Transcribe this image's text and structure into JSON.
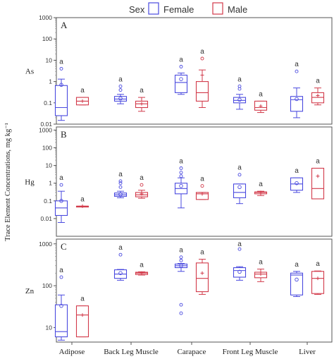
{
  "legend": {
    "title": "Sex",
    "entries": [
      {
        "label": "Female",
        "color": "#4a4adf"
      },
      {
        "label": "Male",
        "color": "#d23a4a"
      }
    ]
  },
  "y_axis_label": "Trace Element Concentrations, mg kg⁻¹",
  "chart_data": {
    "type": "box",
    "categories": [
      "Adipose",
      "Back Leg Muscle",
      "Carapace",
      "Front Leg Muscle",
      "Liver"
    ],
    "series_names": [
      "Female",
      "Male"
    ],
    "colors": {
      "Female": "#4a4adf",
      "Male": "#d23a4a"
    },
    "y_scale": "log",
    "grid": false,
    "legend_position": "top",
    "panels": [
      {
        "letter": "A",
        "element": "As",
        "ylim": [
          0.01,
          1000
        ],
        "ticks": [
          "0.01",
          "0.1",
          "1",
          "10",
          "100",
          "1000"
        ],
        "tick_values": [
          0.01,
          0.1,
          1,
          10,
          100,
          1000
        ],
        "boxes": [
          {
            "category": "Adipose",
            "sex": "Female",
            "min": 0.015,
            "q1": 0.025,
            "median": 0.06,
            "q3": 0.65,
            "max": 1.3,
            "mean": 0.7,
            "outliers": [
              4
            ],
            "letter": "a"
          },
          {
            "category": "Adipose",
            "sex": "Male",
            "min": 0.08,
            "q1": 0.08,
            "median": 0.12,
            "q3": 0.18,
            "max": 0.18,
            "mean": 0.12,
            "outliers": [],
            "letter": "a"
          },
          {
            "category": "Back Leg Muscle",
            "sex": "Female",
            "min": 0.09,
            "q1": 0.12,
            "median": 0.15,
            "q3": 0.2,
            "max": 0.25,
            "mean": 0.16,
            "outliers": [
              0.4,
              0.6
            ],
            "letter": "a"
          },
          {
            "category": "Back Leg Muscle",
            "sex": "Male",
            "min": 0.04,
            "q1": 0.06,
            "median": 0.09,
            "q3": 0.12,
            "max": 0.18,
            "mean": 0.09,
            "outliers": [],
            "letter": "a"
          },
          {
            "category": "Carapace",
            "sex": "Female",
            "min": 0.25,
            "q1": 0.3,
            "median": 0.9,
            "q3": 2,
            "max": 2.5,
            "mean": 1.3,
            "outliers": [
              5
            ],
            "letter": "a"
          },
          {
            "category": "Carapace",
            "sex": "Male",
            "min": 0.06,
            "q1": 0.12,
            "median": 0.3,
            "q3": 1.0,
            "max": 3.5,
            "mean": 2.0,
            "outliers": [
              12
            ],
            "letter": "a"
          },
          {
            "category": "Front Leg Muscle",
            "sex": "Female",
            "min": 0.05,
            "q1": 0.1,
            "median": 0.13,
            "q3": 0.18,
            "max": 0.25,
            "mean": 0.14,
            "outliers": [
              0.45,
              0.6
            ],
            "letter": "a"
          },
          {
            "category": "Front Leg Muscle",
            "sex": "Male",
            "min": 0.035,
            "q1": 0.045,
            "median": 0.06,
            "q3": 0.12,
            "max": 0.12,
            "mean": 0.07,
            "outliers": [],
            "letter": "a"
          },
          {
            "category": "Liver",
            "sex": "Female",
            "min": 0.02,
            "q1": 0.04,
            "median": 0.14,
            "q3": 0.2,
            "max": 0.5,
            "mean": 0.15,
            "outliers": [
              3
            ],
            "letter": "a"
          },
          {
            "category": "Liver",
            "sex": "Male",
            "min": 0.08,
            "q1": 0.1,
            "median": 0.18,
            "q3": 0.3,
            "max": 0.5,
            "mean": 0.22,
            "outliers": [],
            "letter": "a"
          }
        ]
      },
      {
        "letter": "B",
        "element": "Hg",
        "ylim": [
          0.001,
          1500
        ],
        "ticks": [
          "0.01",
          "0.1",
          "1",
          "10",
          "100",
          "1000"
        ],
        "tick_values": [
          0.01,
          0.1,
          1,
          10,
          100,
          1000
        ],
        "boxes": [
          {
            "category": "Adipose",
            "sex": "Female",
            "min": 0.006,
            "q1": 0.015,
            "median": 0.04,
            "q3": 0.1,
            "max": 0.35,
            "mean": 0.1,
            "outliers": [
              0.8
            ],
            "letter": "a"
          },
          {
            "category": "Adipose",
            "sex": "Male",
            "min": 0.045,
            "q1": 0.045,
            "median": 0.05,
            "q3": 0.05,
            "max": 0.05,
            "mean": 0.05,
            "outliers": [],
            "letter": "a"
          },
          {
            "category": "Back Leg Muscle",
            "sex": "Female",
            "min": 0.15,
            "q1": 0.18,
            "median": 0.22,
            "q3": 0.28,
            "max": 0.35,
            "mean": 0.23,
            "outliers": [
              0.6,
              1.0,
              1.3
            ],
            "letter": "a"
          },
          {
            "category": "Back Leg Muscle",
            "sex": "Male",
            "min": 0.14,
            "q1": 0.17,
            "median": 0.22,
            "q3": 0.3,
            "max": 0.4,
            "mean": 0.25,
            "outliers": [
              0.8
            ],
            "letter": "a"
          },
          {
            "category": "Carapace",
            "sex": "Female",
            "min": 0.04,
            "q1": 0.25,
            "median": 0.5,
            "q3": 1.0,
            "max": 2,
            "mean": 0.7,
            "outliers": [
              2.5,
              4,
              7
            ],
            "letter": "a"
          },
          {
            "category": "Carapace",
            "sex": "Male",
            "min": 0.12,
            "q1": 0.12,
            "median": 0.25,
            "q3": 0.3,
            "max": 0.3,
            "mean": 0.25,
            "outliers": [
              0.7
            ],
            "letter": "a"
          },
          {
            "category": "Front Leg Muscle",
            "sex": "Female",
            "min": 0.07,
            "q1": 0.15,
            "median": 0.3,
            "q3": 0.9,
            "max": 0.9,
            "mean": 0.6,
            "outliers": [
              3
            ],
            "letter": "a"
          },
          {
            "category": "Front Leg Muscle",
            "sex": "Male",
            "min": 0.2,
            "q1": 0.25,
            "median": 0.3,
            "q3": 0.32,
            "max": 0.35,
            "mean": 0.3,
            "outliers": [],
            "letter": "a"
          },
          {
            "category": "Liver",
            "sex": "Female",
            "min": 0.3,
            "q1": 0.4,
            "median": 0.9,
            "q3": 2,
            "max": 2,
            "mean": 1.0,
            "outliers": [],
            "letter": "a"
          },
          {
            "category": "Liver",
            "sex": "Male",
            "min": 0.13,
            "q1": 0.13,
            "median": 0.5,
            "q3": 7,
            "max": 7,
            "mean": 2.5,
            "outliers": [],
            "letter": "a"
          }
        ]
      },
      {
        "letter": "C",
        "element": "Zn",
        "ylim": [
          4.5,
          1300
        ],
        "ticks": [
          "10",
          "100",
          "1000"
        ],
        "tick_values": [
          10,
          100,
          1000
        ],
        "boxes": [
          {
            "category": "Adipose",
            "sex": "Female",
            "min": 5,
            "q1": 6,
            "median": 8,
            "q3": 35,
            "max": 60,
            "mean": 33,
            "outliers": [
              160
            ],
            "letter": "a"
          },
          {
            "category": "Adipose",
            "sex": "Male",
            "min": 6,
            "q1": 6,
            "median": 20,
            "q3": 33,
            "max": 33,
            "mean": 20,
            "outliers": [],
            "letter": "a"
          },
          {
            "category": "Back Leg Muscle",
            "sex": "Female",
            "min": 135,
            "q1": 150,
            "median": 190,
            "q3": 240,
            "max": 245,
            "mean": 200,
            "outliers": [
              550
            ],
            "letter": "a"
          },
          {
            "category": "Back Leg Muscle",
            "sex": "Male",
            "min": 180,
            "q1": 185,
            "median": 200,
            "q3": 210,
            "max": 215,
            "mean": 200,
            "outliers": [],
            "letter": "a"
          },
          {
            "category": "Carapace",
            "sex": "Female",
            "min": 220,
            "q1": 270,
            "median": 300,
            "q3": 330,
            "max": 340,
            "mean": 300,
            "outliers": [
              22,
              35,
              400,
              480
            ],
            "letter": "a"
          },
          {
            "category": "Carapace",
            "sex": "Male",
            "min": 62,
            "q1": 72,
            "median": 150,
            "q3": 350,
            "max": 430,
            "mean": 200,
            "outliers": [],
            "letter": "a"
          },
          {
            "category": "Front Leg Muscle",
            "sex": "Female",
            "min": 135,
            "q1": 160,
            "median": 230,
            "q3": 270,
            "max": 285,
            "mean": 215,
            "outliers": [
              750
            ],
            "letter": "a"
          },
          {
            "category": "Front Leg Muscle",
            "sex": "Male",
            "min": 125,
            "q1": 155,
            "median": 190,
            "q3": 210,
            "max": 250,
            "mean": 190,
            "outliers": [],
            "letter": "a"
          },
          {
            "category": "Liver",
            "sex": "Female",
            "min": 55,
            "q1": 60,
            "median": 180,
            "q3": 200,
            "max": 220,
            "mean": 140,
            "outliers": [],
            "letter": "a"
          },
          {
            "category": "Liver",
            "sex": "Male",
            "min": 62,
            "q1": 65,
            "median": 150,
            "q3": 220,
            "max": 225,
            "mean": 150,
            "outliers": [],
            "letter": "a"
          }
        ]
      }
    ]
  }
}
